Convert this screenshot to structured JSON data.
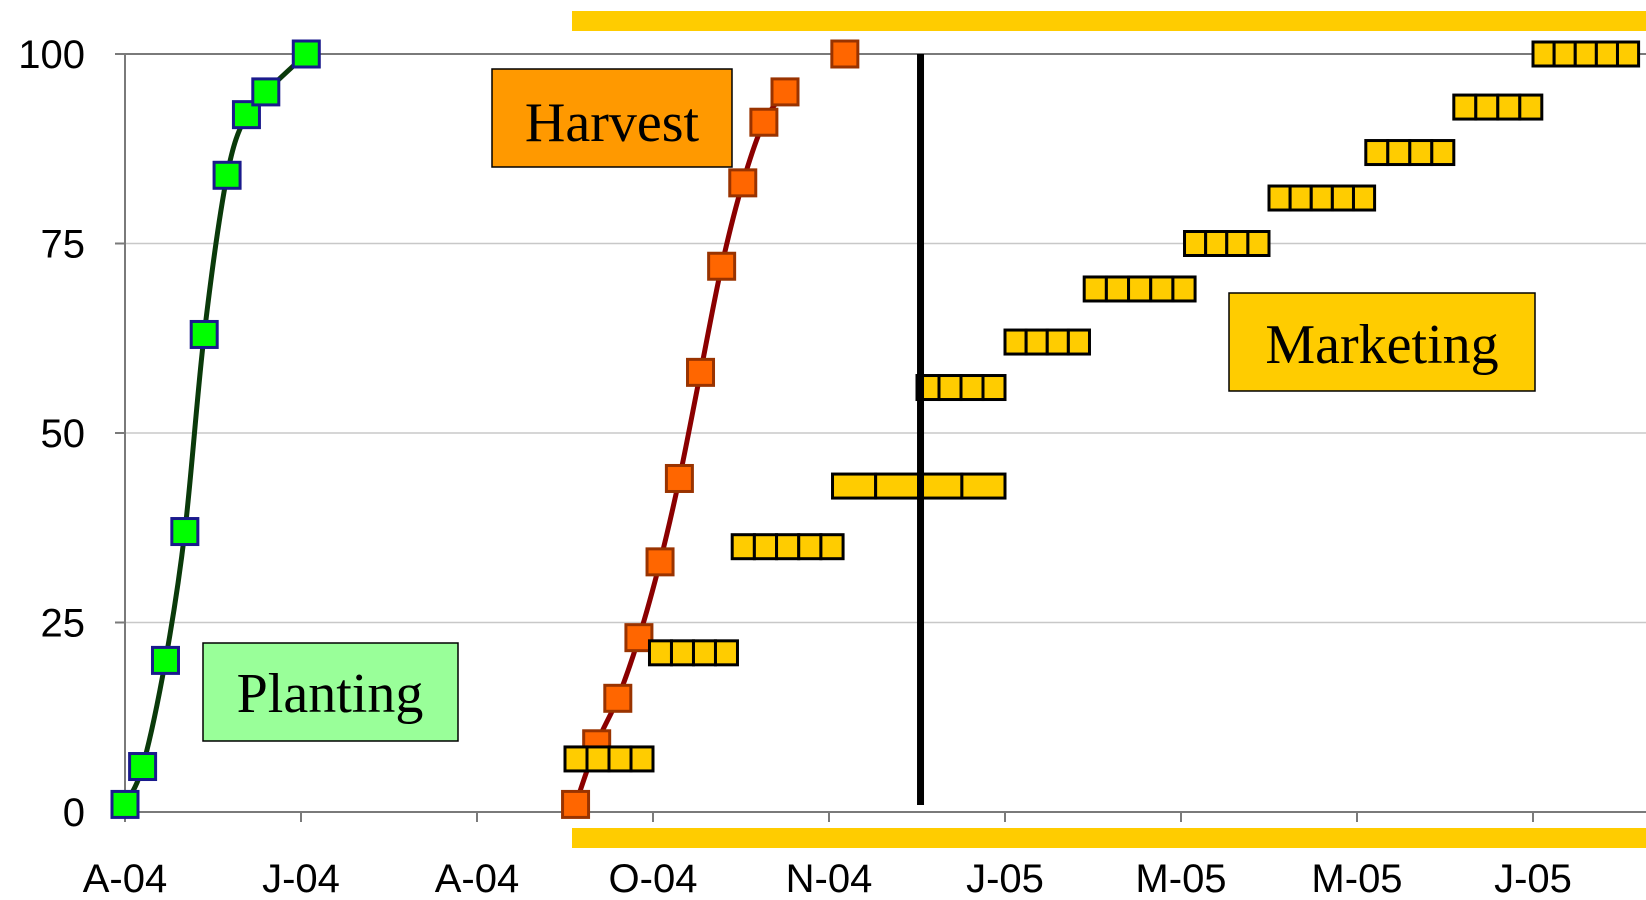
{
  "chart_data": {
    "type": "scatter",
    "title": "",
    "xlabel": "",
    "ylabel": "",
    "ylim": [
      0,
      100
    ],
    "yticks": [
      0,
      25,
      50,
      75,
      100
    ],
    "xlim": [
      0,
      8.6
    ],
    "xticks": [
      {
        "x": 0,
        "label": "A-04"
      },
      {
        "x": 1,
        "label": "J-04"
      },
      {
        "x": 2,
        "label": "A-04"
      },
      {
        "x": 3,
        "label": "O-04"
      },
      {
        "x": 4,
        "label": "N-04"
      },
      {
        "x": 5,
        "label": "J-05"
      },
      {
        "x": 6,
        "label": "M-05"
      },
      {
        "x": 7,
        "label": "M-05"
      },
      {
        "x": 8,
        "label": "J-05"
      }
    ],
    "gridlines": "horizontal",
    "series": [
      {
        "name": "Planting",
        "color": "#00ff00",
        "line_color": "#0a3a0a",
        "marker_border": "#1a1a8c",
        "points": [
          [
            0,
            1
          ],
          [
            0.1,
            6
          ],
          [
            0.23,
            20
          ],
          [
            0.34,
            37
          ],
          [
            0.45,
            63
          ],
          [
            0.58,
            84
          ],
          [
            0.69,
            92
          ],
          [
            0.8,
            95
          ],
          [
            1.03,
            100
          ]
        ]
      },
      {
        "name": "Harvest",
        "color": "#ff6600",
        "line_color": "#8b0000",
        "marker_border": "#993300",
        "points": [
          [
            2.56,
            1
          ],
          [
            2.68,
            9
          ],
          [
            2.8,
            15
          ],
          [
            2.92,
            23
          ],
          [
            3.04,
            33
          ],
          [
            3.15,
            44
          ],
          [
            3.27,
            58
          ],
          [
            3.39,
            72
          ],
          [
            3.51,
            83
          ],
          [
            3.63,
            91
          ],
          [
            3.75,
            95
          ],
          [
            4.09,
            100
          ]
        ]
      },
      {
        "name": "Marketing",
        "color": "#ffcc00",
        "marker_border": "#000000",
        "steps": [
          {
            "x0": 2.5,
            "x1": 3.0,
            "y": 7,
            "count": 4
          },
          {
            "x0": 2.98,
            "x1": 3.48,
            "y": 21,
            "count": 4
          },
          {
            "x0": 3.45,
            "x1": 4.08,
            "y": 35,
            "count": 5
          },
          {
            "x0": 4.02,
            "x1": 5.0,
            "y": 43,
            "count": 4
          },
          {
            "x0": 4.5,
            "x1": 5.0,
            "y": 56,
            "count": 4
          },
          {
            "x0": 5.0,
            "x1": 5.48,
            "y": 62,
            "count": 4
          },
          {
            "x0": 5.45,
            "x1": 6.08,
            "y": 69,
            "count": 5
          },
          {
            "x0": 6.02,
            "x1": 6.5,
            "y": 75,
            "count": 4
          },
          {
            "x0": 6.5,
            "x1": 7.1,
            "y": 81,
            "count": 5
          },
          {
            "x0": 7.05,
            "x1": 7.55,
            "y": 87,
            "count": 4
          },
          {
            "x0": 7.55,
            "x1": 8.05,
            "y": 93,
            "count": 4
          },
          {
            "x0": 8.0,
            "x1": 8.6,
            "y": 100,
            "count": 5
          }
        ]
      }
    ],
    "annotations": [
      {
        "text": "Planting",
        "fill": "#99ff99"
      },
      {
        "text": "Harvest",
        "fill": "#ff9900"
      },
      {
        "text": "Marketing",
        "fill": "#ffcc00"
      }
    ],
    "marketing_band_color": "#ffcc00",
    "divider_x": 4.52,
    "divider_color": "#000000"
  }
}
